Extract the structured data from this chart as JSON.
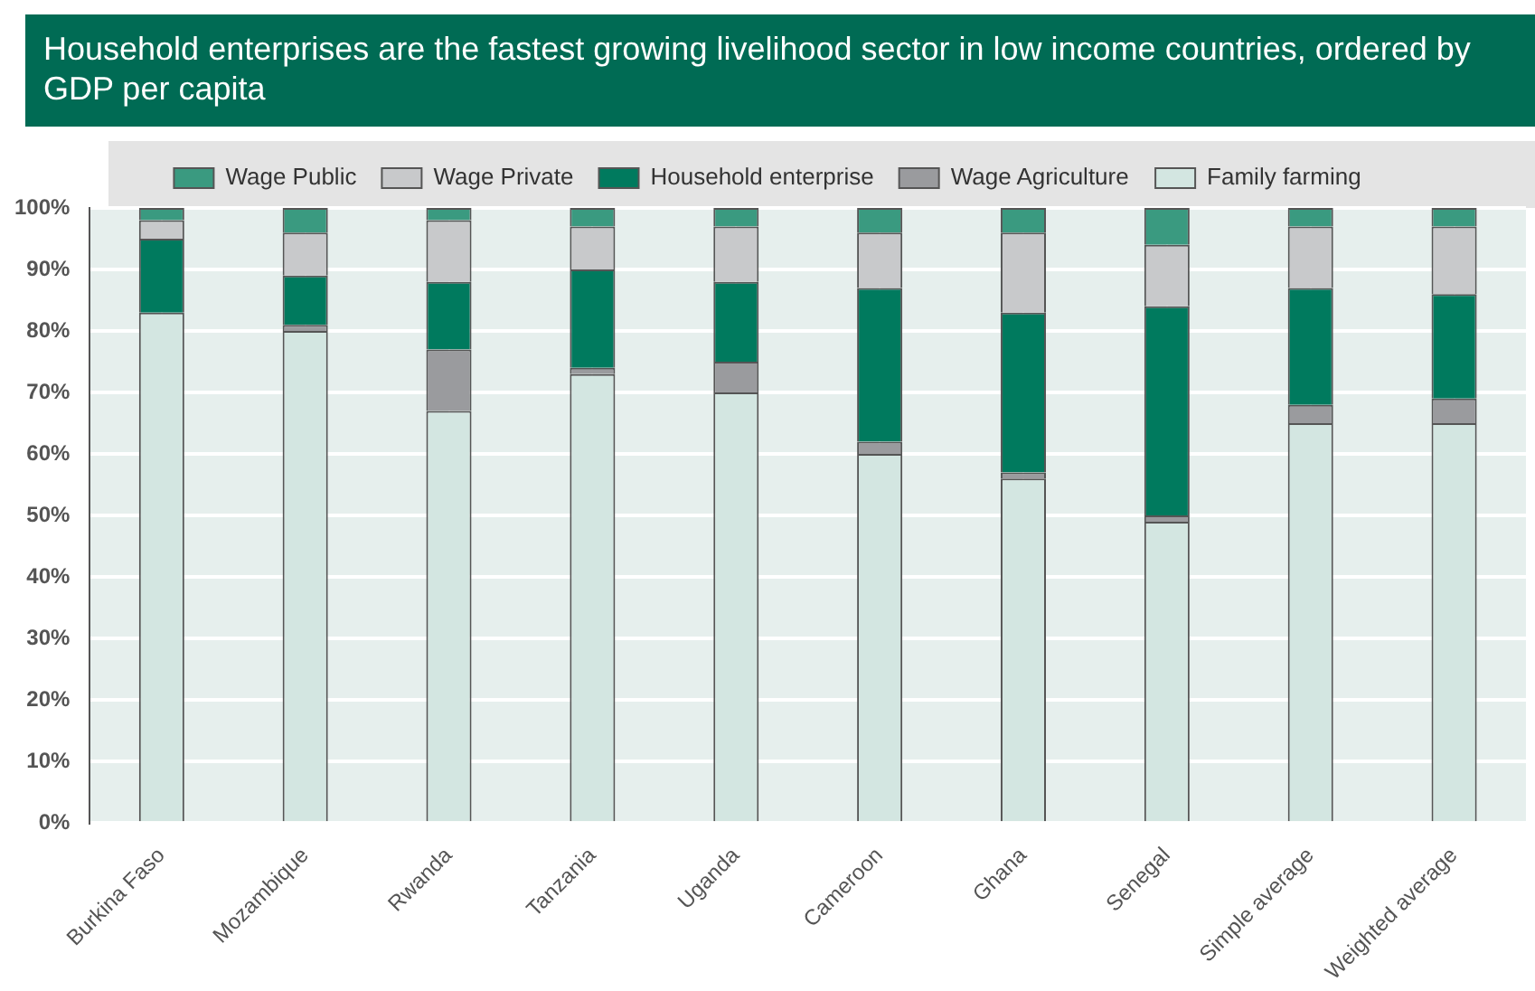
{
  "chart_data": {
    "type": "bar",
    "stacked": true,
    "title": "Household enterprises are the fastest growing livelihood sector in low income countries, ordered by GDP per capita",
    "categories": [
      "Burkina Faso",
      "Mozambique",
      "Rwanda",
      "Tanzania",
      "Uganda",
      "Cameroon",
      "Ghana",
      "Senegal",
      "Simple average",
      "Weighted average"
    ],
    "series": [
      {
        "name": "Family farming",
        "color": "#d3e6e1",
        "values": [
          83,
          80,
          67,
          73,
          70,
          60,
          56,
          49,
          65,
          65
        ]
      },
      {
        "name": "Wage Agriculture",
        "color": "#9a9b9e",
        "values": [
          0,
          1,
          10,
          1,
          5,
          2,
          1,
          1,
          3,
          4
        ]
      },
      {
        "name": "Household enterprise",
        "color": "#007a5e",
        "values": [
          12,
          8,
          11,
          16,
          13,
          25,
          26,
          34,
          19,
          17
        ]
      },
      {
        "name": "Wage Private",
        "color": "#c8c9cb",
        "values": [
          3,
          7,
          10,
          7,
          9,
          9,
          13,
          10,
          10,
          11
        ]
      },
      {
        "name": "Wage Public",
        "color": "#3a9a80",
        "values": [
          2,
          4,
          2,
          3,
          3,
          4,
          4,
          6,
          3,
          3
        ]
      }
    ],
    "ylim": [
      0,
      100
    ],
    "yticks": [
      {
        "value": 0,
        "label": "0%"
      },
      {
        "value": 10,
        "label": "10%"
      },
      {
        "value": 20,
        "label": "20%"
      },
      {
        "value": 30,
        "label": "30%"
      },
      {
        "value": 40,
        "label": "40%"
      },
      {
        "value": 50,
        "label": "50%"
      },
      {
        "value": 60,
        "label": "60%"
      },
      {
        "value": 70,
        "label": "70%"
      },
      {
        "value": 80,
        "label": "80%"
      },
      {
        "value": 90,
        "label": "90%"
      },
      {
        "value": 100,
        "label": "100%"
      }
    ],
    "grid": true,
    "legend": "top"
  }
}
